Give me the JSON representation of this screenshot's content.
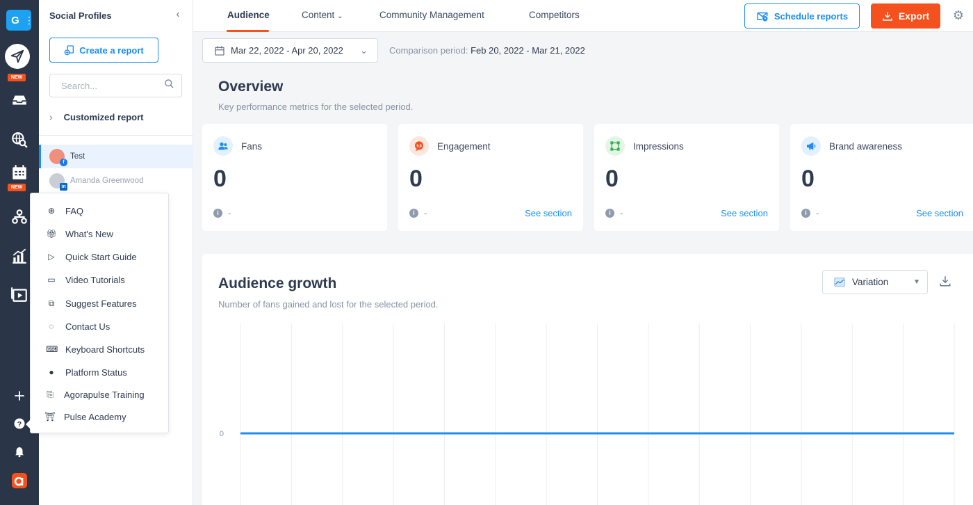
{
  "rail": {
    "workspace_letter": "G",
    "badges": [
      "NEW",
      "NEW"
    ],
    "icons": [
      "paper-plane-icon",
      "inbox-icon",
      "listening-icon",
      "calendar-icon",
      "reports-icon",
      "analytics-icon",
      "media-library-icon",
      "plus-icon",
      "help-icon",
      "bell-icon",
      "agorapulse-logo"
    ]
  },
  "sidebar": {
    "title": "Social Profiles",
    "create_label": "Create a report",
    "search_placeholder": "Search...",
    "customized_label": "Customized report",
    "profiles": [
      {
        "name": "Test",
        "network": "facebook"
      },
      {
        "name": "Amanda Greenwood",
        "network": "linkedin"
      }
    ]
  },
  "help_menu": {
    "items": [
      {
        "label": "FAQ",
        "icon": "lifebuoy-icon"
      },
      {
        "label": "What's New",
        "icon": "gift-icon"
      },
      {
        "label": "Quick Start Guide",
        "icon": "play-icon"
      },
      {
        "label": "Video Tutorials",
        "icon": "tv-icon"
      },
      {
        "label": "Suggest Features",
        "icon": "copy-icon"
      },
      {
        "label": "Contact Us",
        "icon": "chat-icon"
      },
      {
        "label": "Keyboard Shortcuts",
        "icon": "keyboard-icon"
      },
      {
        "label": "Platform Status",
        "icon": "info-icon"
      },
      {
        "label": "Agorapulse Training",
        "icon": "certificate-icon"
      },
      {
        "label": "Pulse Academy",
        "icon": "academy-icon"
      }
    ]
  },
  "topnav": {
    "tabs": [
      "Audience",
      "Content",
      "Community Management",
      "Competitors"
    ],
    "active_tab": "Audience",
    "schedule_label": "Schedule reports",
    "export_label": "Export"
  },
  "datebar": {
    "range": "Mar 22, 2022 - Apr 20, 2022",
    "comparison_label": "Comparison period:",
    "comparison_range": "Feb 20, 2022 - Mar 21, 2022"
  },
  "overview": {
    "title": "Overview",
    "subtitle": "Key performance metrics for the selected period.",
    "cards": [
      {
        "label": "Fans",
        "value": "0",
        "delta": "-",
        "link": "",
        "color": "#1b8ef2",
        "icon": "fans-icon"
      },
      {
        "label": "Engagement",
        "value": "0",
        "delta": "-",
        "link": "See section",
        "color": "#f4511e",
        "icon": "engagement-icon"
      },
      {
        "label": "Impressions",
        "value": "0",
        "delta": "-",
        "link": "See section",
        "color": "#37b24d",
        "icon": "impressions-icon"
      },
      {
        "label": "Brand awareness",
        "value": "0",
        "delta": "-",
        "link": "See section",
        "color": "#1b8ef2",
        "icon": "megaphone-icon"
      }
    ]
  },
  "growth": {
    "title": "Audience growth",
    "subtitle": "Number of fans gained and lost for the selected period.",
    "selector": "Variation"
  },
  "chart_data": {
    "type": "line",
    "series": [
      {
        "values": [
          0,
          0
        ]
      }
    ],
    "y_tick_labels": [
      "0"
    ],
    "grid": true,
    "color": "#1b8ef2"
  }
}
